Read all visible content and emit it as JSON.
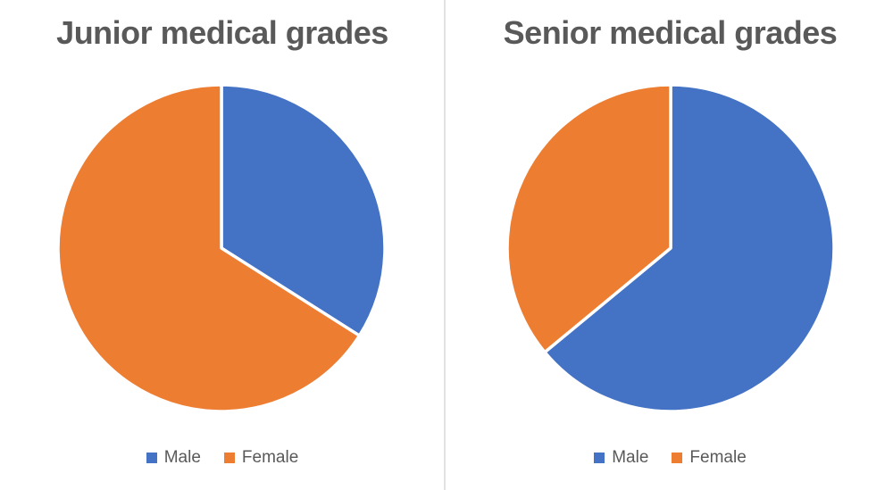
{
  "app": {
    "background": "#FFFFFF",
    "divider_color": "#E2E2E2",
    "text_color": "#595959"
  },
  "chart_data": [
    {
      "type": "pie",
      "title": "Junior medical grades",
      "labels": [
        "Male",
        "Female"
      ],
      "values": [
        34,
        66
      ],
      "values_note": "percent, estimated from slice angles (no data labels shown)",
      "colors": [
        "#4472C4",
        "#ED7D31"
      ],
      "start_angle_deg": 0,
      "direction": "clockwise",
      "slice_border_color": "#FFFFFF",
      "legend_position": "bottom"
    },
    {
      "type": "pie",
      "title": "Senior medical grades",
      "labels": [
        "Male",
        "Female"
      ],
      "values": [
        64,
        36
      ],
      "values_note": "percent, estimated from slice angles (no data labels shown)",
      "colors": [
        "#4472C4",
        "#ED7D31"
      ],
      "start_angle_deg": 0,
      "direction": "clockwise",
      "slice_border_color": "#FFFFFF",
      "legend_position": "bottom"
    }
  ]
}
